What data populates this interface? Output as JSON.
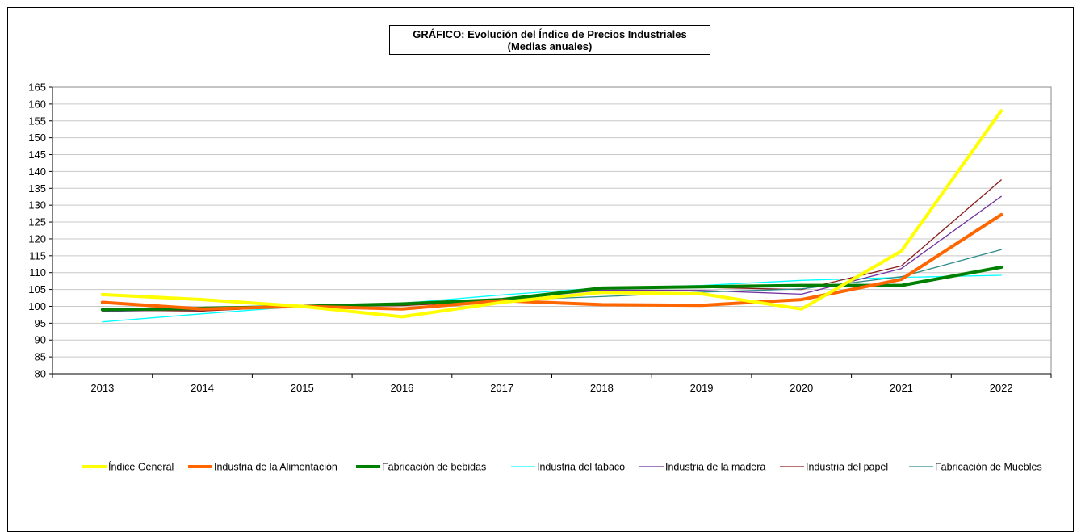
{
  "chart_data": {
    "type": "line",
    "title": "GRÁFICO: Evolución del Índice de Precios Industriales",
    "subtitle": "(Medias anuales)",
    "xlabel": "",
    "ylabel": "",
    "x": [
      "2013",
      "2014",
      "2015",
      "2016",
      "2017",
      "2018",
      "2019",
      "2020",
      "2021",
      "2022"
    ],
    "ylim": [
      80,
      165
    ],
    "yticks": [
      "80",
      "85",
      "90",
      "95",
      "100",
      "105",
      "110",
      "115",
      "120",
      "125",
      "130",
      "135",
      "140",
      "145",
      "150",
      "155",
      "160",
      "165"
    ],
    "grid": true,
    "legend_position": "bottom",
    "series": [
      {
        "name": "Índice General",
        "color": "#FFFF00",
        "width": 4,
        "values": [
          103.5,
          102.0,
          100.0,
          96.9,
          101.2,
          104.1,
          103.7,
          99.2,
          116.4,
          158.0
        ]
      },
      {
        "name": "Industria de la Alimentación",
        "color": "#FF6600",
        "width": 4,
        "values": [
          101.2,
          99.2,
          100.0,
          99.2,
          101.7,
          100.5,
          100.3,
          102.0,
          108.0,
          127.2
        ]
      },
      {
        "name": "Fabricación de bebidas",
        "color": "#008000",
        "width": 4,
        "values": [
          99.0,
          99.4,
          100.0,
          100.7,
          102.0,
          105.4,
          105.8,
          106.2,
          106.2,
          111.6
        ]
      },
      {
        "name": "Industria del tabaco",
        "color": "#00FFFF",
        "width": 1.3,
        "values": [
          95.4,
          97.8,
          100.0,
          100.9,
          103.4,
          105.5,
          106.2,
          107.7,
          108.6,
          109.2
        ]
      },
      {
        "name": "Industria de la madera",
        "color": "#7030A0",
        "width": 1.3,
        "values": [
          98.5,
          99.0,
          100.0,
          100.5,
          102.0,
          104.8,
          104.7,
          103.6,
          111.2,
          132.6
        ]
      },
      {
        "name": "Industria del papel",
        "color": "#8B1A1A",
        "width": 1.3,
        "values": [
          98.9,
          98.6,
          100.0,
          100.2,
          101.5,
          105.4,
          105.6,
          105.0,
          112.0,
          137.5
        ]
      },
      {
        "name": "Fabricación de Muebles",
        "color": "#2E8B8B",
        "width": 1.3,
        "values": [
          98.7,
          99.0,
          100.0,
          100.5,
          101.8,
          102.9,
          104.2,
          105.2,
          108.8,
          116.8
        ]
      }
    ]
  }
}
